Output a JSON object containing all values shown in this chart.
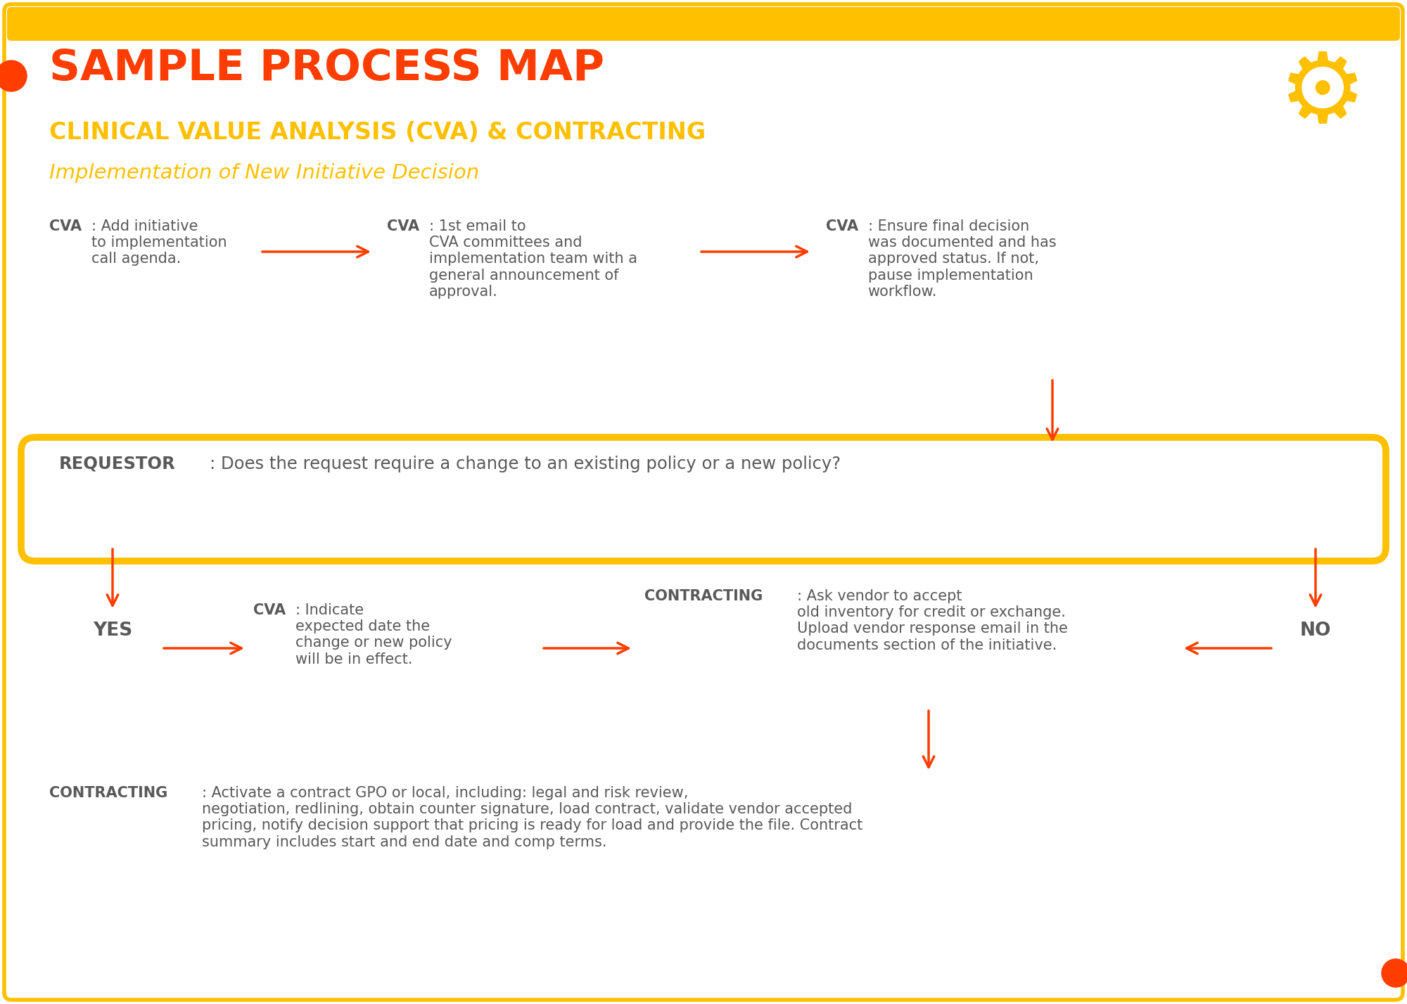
{
  "title": "SAMPLE PROCESS MAP",
  "subtitle": "CLINICAL VALUE ANALYSIS (CVA) & CONTRACTING",
  "italic_subtitle": "Implementation of New Initiative Decision",
  "title_color": "#FF3D00",
  "subtitle_color": "#FFC000",
  "italic_color": "#FFC000",
  "border_color": "#FFC000",
  "arrow_color": "#FF3D00",
  "text_color": "#595959",
  "background_color": "#FFFFFF",
  "figsize": [
    20.0,
    14.28
  ],
  "dpi": 100
}
